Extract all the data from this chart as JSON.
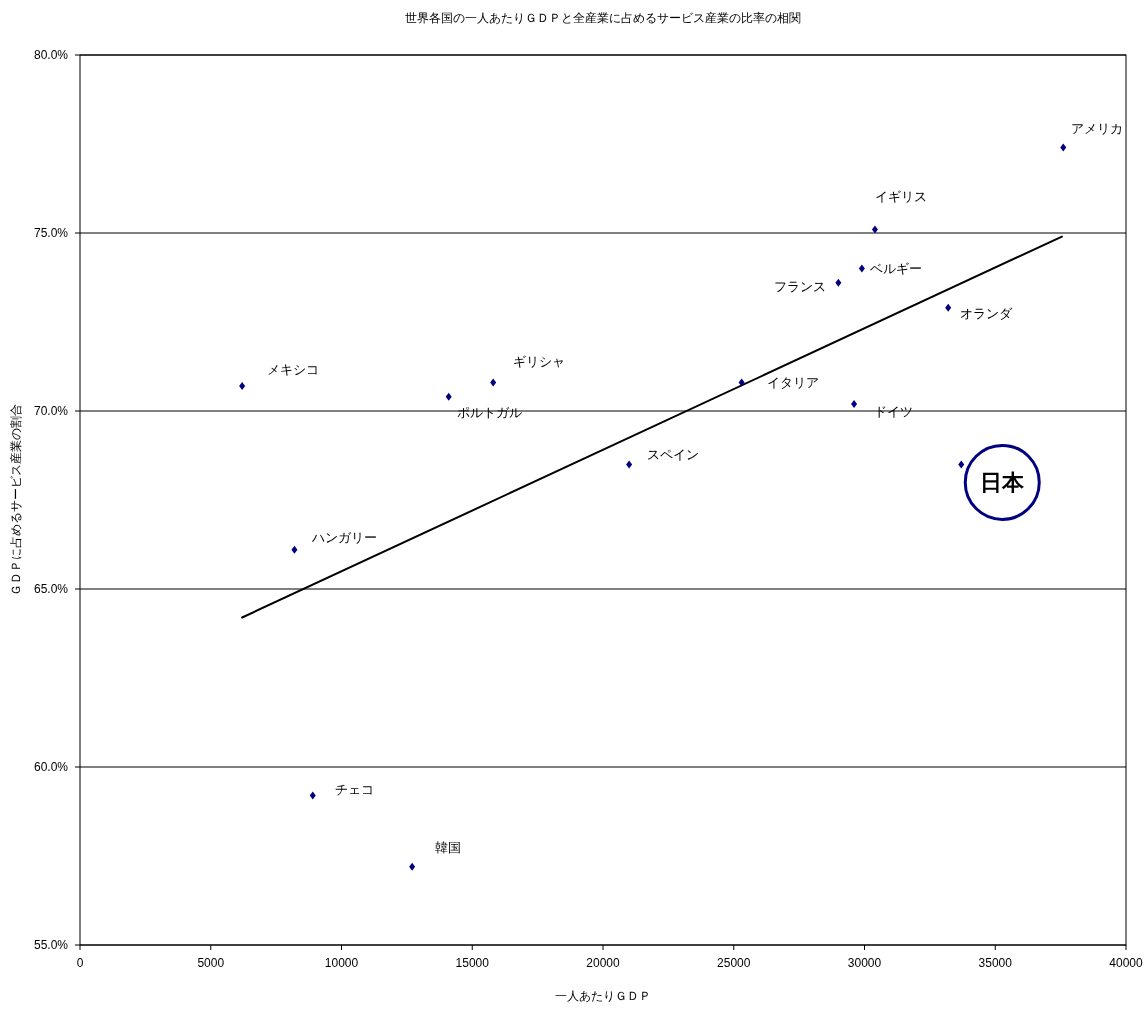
{
  "chart_data": {
    "type": "scatter",
    "title": "世界各国の一人あたりＧＤＰと全産業に占めるサービス産業の比率の相関",
    "xlabel": "一人あたりＧＤＰ",
    "ylabel": "ＧＤＰに占めるサービス産業の割合",
    "xlim": [
      0,
      40000
    ],
    "xticks": [
      0,
      5000,
      10000,
      15000,
      20000,
      25000,
      30000,
      35000,
      40000
    ],
    "ylim": [
      55,
      80
    ],
    "yticks": [
      {
        "value": 55,
        "label": "55.0%"
      },
      {
        "value": 60,
        "label": "60.0%"
      },
      {
        "value": 65,
        "label": "65.0%"
      },
      {
        "value": 70,
        "label": "70.0%"
      },
      {
        "value": 75,
        "label": "75.0%"
      },
      {
        "value": 80,
        "label": "80.0%"
      }
    ],
    "grid": "y",
    "series": [
      {
        "color": "#000080",
        "marker": "diamond",
        "x": [
          6200,
          14100,
          15800,
          8200,
          21000,
          37600,
          30400,
          29900,
          29000,
          33200,
          25300,
          29600,
          33700,
          8900,
          12700
        ],
        "values": [
          70.7,
          70.4,
          70.8,
          66.1,
          68.5,
          77.4,
          75.1,
          74.0,
          73.6,
          72.9,
          70.8,
          70.2,
          68.5,
          59.2,
          57.2
        ]
      },
      {
        "type": "line",
        "color": "#000000",
        "marker": "none",
        "line_style": "solid",
        "x": [
          6200,
          37550
        ],
        "values": [
          64.2,
          74.9
        ]
      }
    ],
    "annotations": [
      {
        "text": "メキシコ",
        "x": 6200,
        "y": 70.7
      },
      {
        "text": "ポルトガル",
        "x": 14100,
        "y": 70.4
      },
      {
        "text": "ギリシャ",
        "x": 15800,
        "y": 70.8
      },
      {
        "text": "ハンガリー",
        "x": 8200,
        "y": 66.1
      },
      {
        "text": "スペイン",
        "x": 21000,
        "y": 68.5
      },
      {
        "text": "アメリカ",
        "x": 37600,
        "y": 77.4
      },
      {
        "text": "イギリス",
        "x": 30400,
        "y": 75.1
      },
      {
        "text": "ベルギー",
        "x": 29900,
        "y": 74.0
      },
      {
        "text": "フランス",
        "x": 29000,
        "y": 73.6
      },
      {
        "text": "オランダ",
        "x": 33200,
        "y": 72.9
      },
      {
        "text": "イタリア",
        "x": 25300,
        "y": 70.8
      },
      {
        "text": "ドイツ",
        "x": 29600,
        "y": 70.2
      },
      {
        "text": "日本",
        "x": 33700,
        "y": 68.5
      },
      {
        "text": "チェコ",
        "x": 8900,
        "y": 59.2
      },
      {
        "text": "韓国",
        "x": 12700,
        "y": 57.2
      }
    ]
  }
}
